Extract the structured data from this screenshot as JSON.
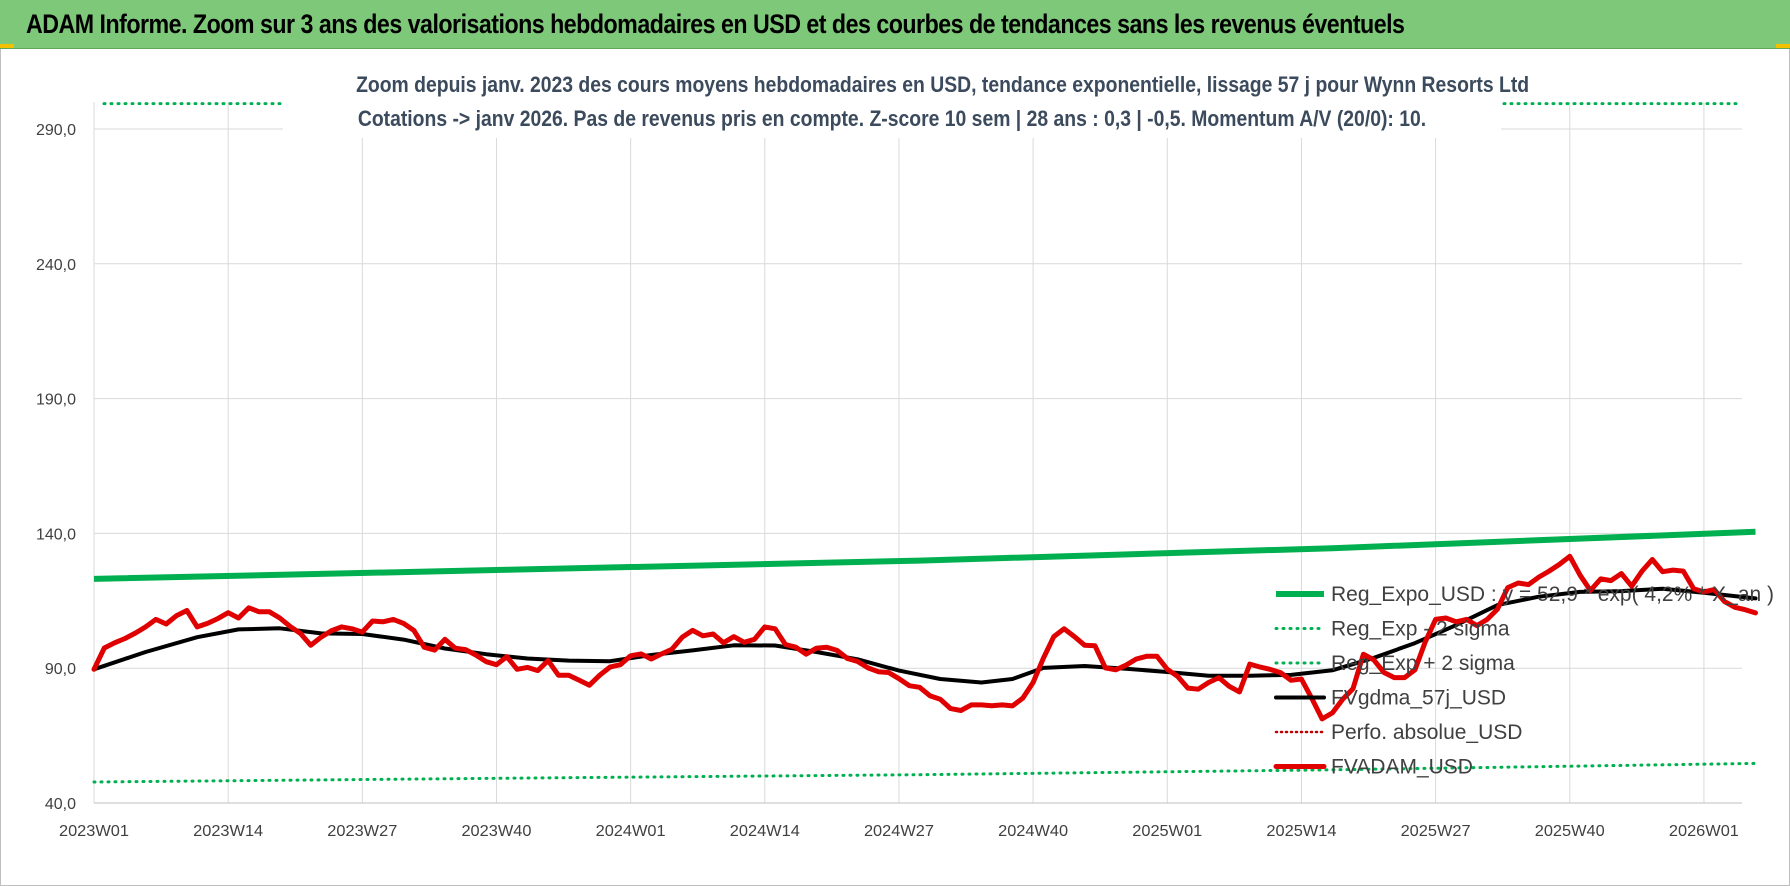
{
  "banner": {
    "title": "ADAM Informe. Zoom sur 3 ans des valorisations hebdomadaires en USD et des courbes de tendances sans les revenus éventuels"
  },
  "colors": {
    "banner_bg": "#7ec87a",
    "reg_expo": "#00b050",
    "reg_sigma": "#00b050",
    "fvgdma": "#000000",
    "perfo": "#c00000",
    "fvadam": "#e00000",
    "grid": "#d9d9d9"
  },
  "chart_data": {
    "type": "line",
    "subtitle_line1": "Zoom depuis janv. 2023 des cours moyens hebdomadaires en USD, tendance exponentielle, lissage 57 j pour Wynn Resorts Ltd",
    "subtitle_line2": "Cotations -> janv 2026. Pas de revenus pris en compte. Z-score 10 sem | 28 ans : 0,3 | -0,5. Momentum A/V (20/0): 10.",
    "ylim": [
      40,
      300
    ],
    "y_ticks": [
      "40,0",
      "90,0",
      "140,0",
      "190,0",
      "240,0",
      "290,0"
    ],
    "y_tick_values": [
      40,
      90,
      140,
      190,
      240,
      290
    ],
    "x_tick_labels": [
      "2023W01",
      "2023W14",
      "2023W27",
      "2023W40",
      "2024W01",
      "2024W14",
      "2024W27",
      "2024W40",
      "2025W01",
      "2025W14",
      "2025W27",
      "2025W40",
      "2026W01"
    ],
    "x_tick_index": [
      0,
      13,
      26,
      39,
      52,
      65,
      78,
      91,
      104,
      117,
      130,
      143,
      156
    ],
    "n_weeks": 162,
    "grid": true,
    "legend_position": "right",
    "series": [
      {
        "name": "Reg_Expo_USD : y = 52,9 * exp( 4,2% * X_an )",
        "style": "solid-thick",
        "values": [
          [
            0,
            123.1
          ],
          [
            40,
            126.5
          ],
          [
            80,
            129.9
          ],
          [
            120,
            134.5
          ],
          [
            161,
            140.6
          ]
        ]
      },
      {
        "name": "Reg_Exp - 2 sigma",
        "style": "dotted",
        "values": [
          [
            0,
            47.8
          ],
          [
            40,
            49.2
          ],
          [
            80,
            50.5
          ],
          [
            120,
            52.3
          ],
          [
            161,
            54.7
          ]
        ]
      },
      {
        "name": "Reg_Exp + 2 sigma",
        "style": "dotted",
        "values": [
          [
            0,
            299.4
          ],
          [
            161,
            299.4
          ]
        ]
      },
      {
        "name": "FVgdma_57j_USD",
        "style": "solid",
        "values": [
          [
            0,
            89.6
          ],
          [
            5,
            96.0
          ],
          [
            10,
            101.5
          ],
          [
            14,
            104.4
          ],
          [
            18,
            104.8
          ],
          [
            22,
            102.9
          ],
          [
            26,
            102.7
          ],
          [
            30,
            100.6
          ],
          [
            34,
            97.3
          ],
          [
            38,
            95.2
          ],
          [
            42,
            93.6
          ],
          [
            46,
            92.8
          ],
          [
            50,
            92.6
          ],
          [
            54,
            94.9
          ],
          [
            58,
            96.6
          ],
          [
            62,
            98.5
          ],
          [
            66,
            98.4
          ],
          [
            70,
            96.0
          ],
          [
            74,
            93.3
          ],
          [
            78,
            89.1
          ],
          [
            82,
            86.0
          ],
          [
            86,
            84.7
          ],
          [
            89,
            86.0
          ],
          [
            92,
            90.1
          ],
          [
            96,
            90.8
          ],
          [
            100,
            89.8
          ],
          [
            104,
            88.6
          ],
          [
            108,
            87.2
          ],
          [
            112,
            87.2
          ],
          [
            116,
            87.5
          ],
          [
            120,
            89.2
          ],
          [
            124,
            93.8
          ],
          [
            128,
            99.3
          ],
          [
            132,
            106.0
          ],
          [
            136,
            113.4
          ],
          [
            140,
            116.5
          ],
          [
            144,
            118.3
          ],
          [
            148,
            118.6
          ],
          [
            152,
            119.5
          ],
          [
            156,
            118.0
          ],
          [
            161,
            115.9
          ]
        ]
      },
      {
        "name": "Perfo. absolue_USD",
        "style": "dotted",
        "values": []
      },
      {
        "name": "FVADAM_USD",
        "style": "solid-thick",
        "values": [
          [
            0,
            89.6
          ],
          [
            1,
            97.5
          ],
          [
            2,
            99.4
          ],
          [
            3,
            101.0
          ],
          [
            4,
            103.0
          ],
          [
            5,
            105.3
          ],
          [
            6,
            108.1
          ],
          [
            7,
            106.4
          ],
          [
            8,
            109.5
          ],
          [
            9,
            111.4
          ],
          [
            10,
            105.3
          ],
          [
            11,
            106.6
          ],
          [
            12,
            108.4
          ],
          [
            13,
            110.6
          ],
          [
            14,
            108.6
          ],
          [
            15,
            112.4
          ],
          [
            16,
            110.9
          ],
          [
            17,
            110.9
          ],
          [
            18,
            108.6
          ],
          [
            19,
            105.5
          ],
          [
            20,
            102.9
          ],
          [
            21,
            98.5
          ],
          [
            22,
            101.5
          ],
          [
            23,
            103.9
          ],
          [
            24,
            105.3
          ],
          [
            25,
            104.6
          ],
          [
            26,
            103.4
          ],
          [
            27,
            107.5
          ],
          [
            28,
            107.2
          ],
          [
            29,
            108.1
          ],
          [
            30,
            106.6
          ],
          [
            31,
            104.0
          ],
          [
            32,
            97.8
          ],
          [
            33,
            96.7
          ],
          [
            34,
            100.7
          ],
          [
            35,
            97.4
          ],
          [
            36,
            96.9
          ],
          [
            37,
            94.9
          ],
          [
            38,
            92.4
          ],
          [
            39,
            91.3
          ],
          [
            40,
            94.3
          ],
          [
            41,
            89.6
          ],
          [
            42,
            90.3
          ],
          [
            43,
            89.1
          ],
          [
            44,
            92.8
          ],
          [
            45,
            87.4
          ],
          [
            46,
            87.4
          ],
          [
            47,
            85.6
          ],
          [
            48,
            83.7
          ],
          [
            49,
            87.4
          ],
          [
            50,
            90.4
          ],
          [
            51,
            91.3
          ],
          [
            52,
            94.6
          ],
          [
            53,
            95.3
          ],
          [
            54,
            93.4
          ],
          [
            55,
            95.3
          ],
          [
            56,
            97.0
          ],
          [
            57,
            101.5
          ],
          [
            58,
            104.0
          ],
          [
            59,
            102.0
          ],
          [
            60,
            102.7
          ],
          [
            61,
            99.4
          ],
          [
            62,
            101.7
          ],
          [
            63,
            99.6
          ],
          [
            64,
            100.7
          ],
          [
            65,
            105.3
          ],
          [
            66,
            104.6
          ],
          [
            67,
            98.8
          ],
          [
            68,
            97.8
          ],
          [
            69,
            95.2
          ],
          [
            70,
            97.4
          ],
          [
            71,
            97.8
          ],
          [
            72,
            96.6
          ],
          [
            73,
            93.6
          ],
          [
            74,
            92.5
          ],
          [
            75,
            90.1
          ],
          [
            76,
            88.7
          ],
          [
            77,
            88.4
          ],
          [
            78,
            86.1
          ],
          [
            79,
            83.5
          ],
          [
            80,
            82.9
          ],
          [
            81,
            79.8
          ],
          [
            82,
            78.5
          ],
          [
            83,
            75.0
          ],
          [
            84,
            74.3
          ],
          [
            85,
            76.4
          ],
          [
            86,
            76.4
          ],
          [
            87,
            76.1
          ],
          [
            88,
            76.4
          ],
          [
            89,
            76.0
          ],
          [
            90,
            78.9
          ],
          [
            91,
            84.7
          ],
          [
            92,
            93.7
          ],
          [
            93,
            101.7
          ],
          [
            94,
            104.6
          ],
          [
            95,
            101.7
          ],
          [
            96,
            98.5
          ],
          [
            97,
            98.3
          ],
          [
            98,
            90.1
          ],
          [
            99,
            89.4
          ],
          [
            100,
            91.1
          ],
          [
            101,
            93.4
          ],
          [
            102,
            94.4
          ],
          [
            103,
            94.4
          ],
          [
            104,
            89.6
          ],
          [
            105,
            87.0
          ],
          [
            106,
            82.6
          ],
          [
            107,
            82.2
          ],
          [
            108,
            84.7
          ],
          [
            109,
            86.5
          ],
          [
            110,
            83.3
          ],
          [
            111,
            81.2
          ],
          [
            112,
            91.5
          ],
          [
            113,
            90.4
          ],
          [
            114,
            89.5
          ],
          [
            115,
            88.3
          ],
          [
            116,
            85.5
          ],
          [
            117,
            86.0
          ],
          [
            118,
            78.8
          ],
          [
            119,
            71.2
          ],
          [
            120,
            73.4
          ],
          [
            121,
            78.5
          ],
          [
            122,
            82.4
          ],
          [
            123,
            95.2
          ],
          [
            124,
            93.1
          ],
          [
            125,
            88.4
          ],
          [
            126,
            86.5
          ],
          [
            127,
            86.5
          ],
          [
            128,
            89.4
          ],
          [
            129,
            99.8
          ],
          [
            130,
            108.1
          ],
          [
            131,
            108.6
          ],
          [
            132,
            107.2
          ],
          [
            133,
            108.1
          ],
          [
            134,
            105.8
          ],
          [
            135,
            108.1
          ],
          [
            136,
            111.9
          ],
          [
            137,
            119.9
          ],
          [
            138,
            121.6
          ],
          [
            139,
            121.0
          ],
          [
            140,
            123.8
          ],
          [
            141,
            126.0
          ],
          [
            142,
            128.5
          ],
          [
            143,
            131.5
          ],
          [
            144,
            124.5
          ],
          [
            145,
            118.8
          ],
          [
            146,
            123.1
          ],
          [
            147,
            122.5
          ],
          [
            148,
            125.1
          ],
          [
            149,
            120.4
          ],
          [
            150,
            126.0
          ],
          [
            151,
            130.3
          ],
          [
            152,
            125.8
          ],
          [
            153,
            126.4
          ],
          [
            154,
            126.0
          ],
          [
            155,
            119.5
          ],
          [
            156,
            118.3
          ],
          [
            157,
            119.2
          ],
          [
            158,
            114.7
          ],
          [
            159,
            112.6
          ],
          [
            160,
            111.7
          ],
          [
            161,
            110.5
          ]
        ]
      }
    ]
  }
}
